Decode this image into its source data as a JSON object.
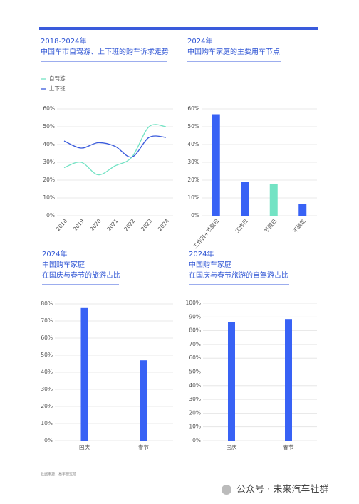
{
  "chart_data": [
    {
      "type": "line",
      "title": "2018-2024年",
      "subtitle": [
        "中国车市自驾游、上下班的购车诉求走势"
      ],
      "categories": [
        "2018",
        "2019",
        "2020",
        "2021",
        "2022",
        "2023",
        "2024"
      ],
      "series": [
        {
          "name": "自驾游",
          "color": "#73e3c4",
          "values": [
            27,
            30,
            23,
            28,
            33,
            50,
            50
          ]
        },
        {
          "name": "上下班",
          "color": "#3a5bdc",
          "values": [
            42,
            38,
            41,
            39,
            33,
            44,
            44
          ]
        }
      ],
      "ylim": [
        0,
        60
      ],
      "yticks": [
        {
          "value": 0,
          "label": "0%"
        },
        {
          "value": 10,
          "label": "10%"
        },
        {
          "value": 20,
          "label": "20%"
        },
        {
          "value": 30,
          "label": "30%"
        },
        {
          "value": 40,
          "label": "40%"
        },
        {
          "value": 50,
          "label": "50%"
        },
        {
          "value": 60,
          "label": "60%"
        }
      ],
      "grid": true,
      "legend": "top-left"
    },
    {
      "type": "bar",
      "title": "2024年",
      "subtitle": [
        "中国购车家庭的主要用车节点"
      ],
      "categories": [
        "工作日+节假日",
        "工作日",
        "节假日",
        "不确定"
      ],
      "values": [
        57,
        19,
        18,
        6.5
      ],
      "colors": [
        "#3862f5",
        "#3862f5",
        "#73e3c4",
        "#3862f5"
      ],
      "ylim": [
        0,
        60
      ],
      "yticks": [
        {
          "value": 0,
          "label": "0%"
        },
        {
          "value": 10,
          "label": "10%"
        },
        {
          "value": 20,
          "label": "20%"
        },
        {
          "value": 30,
          "label": "30%"
        },
        {
          "value": 40,
          "label": "40%"
        },
        {
          "value": 50,
          "label": "50%"
        },
        {
          "value": 60,
          "label": "60%"
        }
      ],
      "grid": true
    },
    {
      "type": "bar",
      "title": "2024年",
      "subtitle": [
        "中国购车家庭",
        "在国庆与春节的旅游占比"
      ],
      "categories": [
        "国庆",
        "春节"
      ],
      "values": [
        78,
        47
      ],
      "colors": [
        "#3862f5",
        "#3862f5"
      ],
      "ylim": [
        0,
        80
      ],
      "yticks": [
        {
          "value": 0,
          "label": "0%"
        },
        {
          "value": 10,
          "label": "10%"
        },
        {
          "value": 20,
          "label": "20%"
        },
        {
          "value": 30,
          "label": "30%"
        },
        {
          "value": 40,
          "label": "40%"
        },
        {
          "value": 50,
          "label": "50%"
        },
        {
          "value": 60,
          "label": "60%"
        },
        {
          "value": 70,
          "label": "70%"
        },
        {
          "value": 80,
          "label": "80%"
        }
      ],
      "grid": true
    },
    {
      "type": "bar",
      "title": "2024年",
      "subtitle": [
        "中国购车家庭",
        "在国庆与春节旅游的自驾游占比"
      ],
      "categories": [
        "国庆",
        "春节"
      ],
      "values": [
        86.5,
        88.5
      ],
      "colors": [
        "#3862f5",
        "#3862f5"
      ],
      "ylim": [
        0,
        100
      ],
      "yticks": [
        {
          "value": 0,
          "label": "0%"
        },
        {
          "value": 10,
          "label": "10%"
        },
        {
          "value": 20,
          "label": "20%"
        },
        {
          "value": 30,
          "label": "30%"
        },
        {
          "value": 40,
          "label": "40%"
        },
        {
          "value": 50,
          "label": "50%"
        },
        {
          "value": 60,
          "label": "60%"
        },
        {
          "value": 70,
          "label": "70%"
        },
        {
          "value": 80,
          "label": "80%"
        },
        {
          "value": 90,
          "label": "90%"
        },
        {
          "value": 100,
          "label": "100%"
        }
      ],
      "grid": true
    }
  ],
  "source": "数据来源：易车研究院",
  "watermark": "公众号 · 未来汽车社群"
}
